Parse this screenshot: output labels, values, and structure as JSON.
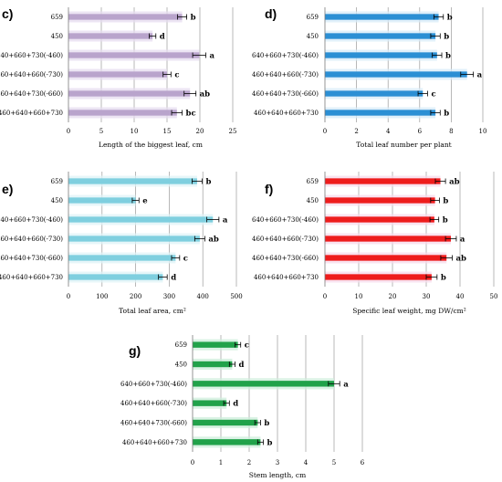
{
  "chart_data": [
    {
      "type": "bar",
      "panel": "c)",
      "categories": [
        "659",
        "450",
        "640+660+730(-460)",
        "460+640+660(-730)",
        "460+640+730(-660)",
        "460+640+660+730"
      ],
      "values": [
        17.3,
        12.8,
        19.9,
        15.0,
        18.5,
        16.5
      ],
      "errors": [
        0.7,
        0.5,
        1.0,
        0.6,
        0.9,
        0.8
      ],
      "significance": [
        "b",
        "d",
        "a",
        "c",
        "ab",
        "bc"
      ],
      "xlabel": "Length of the biggest leaf, cm",
      "xlim": [
        0,
        25
      ],
      "xticks": [
        0,
        5,
        10,
        15,
        20,
        25
      ],
      "color": "#b9a4cc",
      "highlight": "#e6dcef",
      "grid": true
    },
    {
      "type": "bar",
      "panel": "d)",
      "categories": [
        "659",
        "450",
        "640+660+730(-460)",
        "460+640+660(-730)",
        "460+640+730(-660)",
        "460+640+660+730"
      ],
      "values": [
        7.2,
        7.0,
        7.1,
        9.0,
        6.2,
        7.0
      ],
      "errors": [
        0.3,
        0.3,
        0.3,
        0.4,
        0.3,
        0.3
      ],
      "significance": [
        "b",
        "b",
        "b",
        "a",
        "c",
        "b"
      ],
      "xlabel": "Total leaf number per plant",
      "xlim": [
        0,
        10
      ],
      "xticks": [
        0,
        2,
        4,
        6,
        8,
        10
      ],
      "color": "#2b8fd4",
      "highlight": "#d7ebf8",
      "grid": true
    },
    {
      "type": "bar",
      "panel": "e)",
      "categories": [
        "659",
        "450",
        "640+660+730(-460)",
        "460+640+660(-730)",
        "460+640+730(-660)",
        "460+640+660+730"
      ],
      "values": [
        383,
        200,
        430,
        391,
        319,
        281
      ],
      "errors": [
        15,
        10,
        18,
        15,
        12,
        13
      ],
      "significance": [
        "b",
        "e",
        "a",
        "ab",
        "c",
        "d"
      ],
      "xlabel": "Total leaf area, cm²",
      "xlim": [
        0,
        500
      ],
      "xticks": [
        0,
        100,
        200,
        300,
        400,
        500
      ],
      "color": "#7fcfdf",
      "highlight": "#dff3f7",
      "grid": true
    },
    {
      "type": "bar",
      "panel": "f)",
      "categories": [
        "659",
        "450",
        "640+660+730(-460)",
        "460+640+660(-730)",
        "460+640+730(-660)",
        "460+640+660+730"
      ],
      "values": [
        34.2,
        32.6,
        32.4,
        37.3,
        36.0,
        31.6
      ],
      "errors": [
        1.5,
        1.3,
        1.3,
        1.6,
        1.7,
        1.6
      ],
      "significance": [
        "ab",
        "b",
        "b",
        "a",
        "ab",
        "b"
      ],
      "xlabel": "Specific leaf weight, mg DW/cm²",
      "xlim": [
        0,
        50
      ],
      "xticks": [
        0,
        10,
        20,
        30,
        40,
        50
      ],
      "color": "#ee1c1c",
      "highlight": "#f7d9ea",
      "grid": true
    },
    {
      "type": "bar",
      "panel": "g)",
      "categories": [
        "659",
        "450",
        "640+660+730(-460)",
        "460+640+660(-730)",
        "460+640+730(-660)",
        "460+640+660+730"
      ],
      "values": [
        1.6,
        1.4,
        5.0,
        1.2,
        2.3,
        2.4
      ],
      "errors": [
        0.1,
        0.1,
        0.2,
        0.1,
        0.1,
        0.1
      ],
      "significance": [
        "c",
        "d",
        "a",
        "d",
        "b",
        "b"
      ],
      "xlabel": "Stem length, cm",
      "xlim": [
        0,
        6
      ],
      "xticks": [
        0,
        1,
        2,
        3,
        4,
        5,
        6
      ],
      "color": "#21a24a",
      "highlight": "#cdeedb",
      "grid": true
    }
  ]
}
